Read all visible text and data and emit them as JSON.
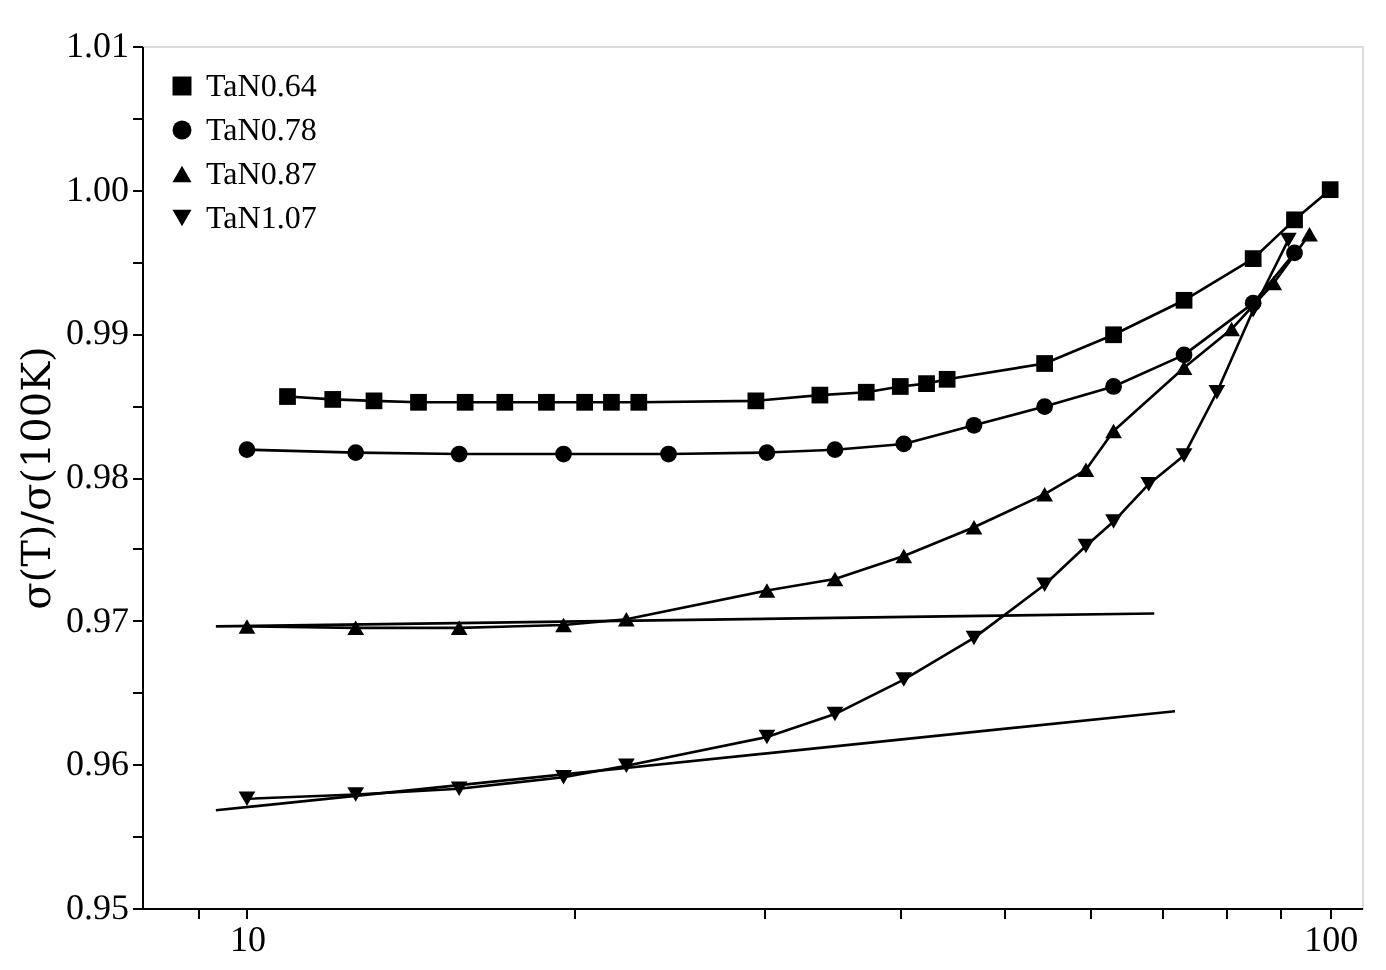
{
  "chart_data": {
    "type": "line",
    "ylabel": "σ(T)/σ(100K)",
    "log": "x",
    "grid": false,
    "legend": "top left",
    "line_style": "solid",
    "xlim": [
      8,
      107
    ],
    "xticks": [
      {
        "value": 9,
        "label": null
      },
      10,
      {
        "value": 20,
        "label": null
      },
      {
        "value": 30,
        "label": null
      },
      {
        "value": 40,
        "label": null
      },
      {
        "value": 50,
        "label": null
      },
      {
        "value": 60,
        "label": null
      },
      {
        "value": 70,
        "label": null
      },
      {
        "value": 80,
        "label": null
      },
      {
        "value": 90,
        "label": null
      },
      100
    ],
    "ylim": [
      0.95,
      1.01
    ],
    "yticks": [
      0.95,
      {
        "value": 0.955,
        "label": null
      },
      0.96,
      {
        "value": 0.965,
        "label": null
      },
      0.97,
      {
        "value": 0.975,
        "label": null
      },
      0.98,
      {
        "value": 0.985,
        "label": null
      },
      0.99,
      {
        "value": 0.995,
        "label": null
      },
      {
        "value": 1.0,
        "label": "1.00"
      },
      {
        "value": 1.005,
        "label": null
      },
      1.01
    ],
    "series": [
      {
        "name": "TaN0.64",
        "color": "#000000",
        "marker": "square",
        "x": [
          10.9,
          12.0,
          13.1,
          14.4,
          15.9,
          17.3,
          18.9,
          20.5,
          21.7,
          23.0,
          29.5,
          33.8,
          37.3,
          40.1,
          42.4,
          44.3,
          54.5,
          63.1,
          73.3,
          84.9,
          92.7,
          100
        ],
        "values": [
          0.9856,
          0.9854,
          0.9853,
          0.9852,
          0.9852,
          0.9852,
          0.9852,
          0.9852,
          0.9852,
          0.9852,
          0.9853,
          0.9857,
          0.9859,
          0.9863,
          0.9865,
          0.9868,
          0.9879,
          0.9899,
          0.9923,
          0.9952,
          0.9979,
          1.0
        ]
      },
      {
        "name": "TaN0.78",
        "color": "#000000",
        "marker": "circle",
        "x": [
          10,
          12.6,
          15.7,
          19.6,
          24.5,
          30.2,
          34.9,
          40.4,
          46.9,
          54.5,
          63.1,
          73.3,
          84.9,
          92.7
        ],
        "values": [
          0.9819,
          0.9817,
          0.9816,
          0.9816,
          0.9816,
          0.9817,
          0.9819,
          0.9823,
          0.9836,
          0.9849,
          0.9863,
          0.9885,
          0.9921,
          0.9956
        ]
      },
      {
        "name": "TaN0.87",
        "color": "#000000",
        "marker": "triangle",
        "x": [
          10,
          12.6,
          15.7,
          19.6,
          22.4,
          30.2,
          34.9,
          40.4,
          46.9,
          54.5,
          59.5,
          63.1,
          73.3,
          81.1,
          88.7,
          95.7
        ],
        "values": [
          0.9696,
          0.9695,
          0.9695,
          0.9697,
          0.9701,
          0.9721,
          0.9729,
          0.9745,
          0.9765,
          0.9788,
          0.9805,
          0.9832,
          0.9876,
          0.9903,
          0.9935,
          0.9969
        ]
      },
      {
        "name": "TaN1.07",
        "color": "#000000",
        "marker": "triangle-down",
        "x": [
          10,
          12.6,
          15.7,
          19.6,
          22.4,
          30.2,
          34.9,
          40.4,
          46.9,
          54.5,
          59.5,
          63.1,
          68.0,
          73.3,
          78.6,
          84.9,
          91.5
        ],
        "values": [
          0.9576,
          0.9579,
          0.9583,
          0.9591,
          0.9599,
          0.9619,
          0.9635,
          0.9659,
          0.9688,
          0.9725,
          0.9752,
          0.9769,
          0.9795,
          0.9815,
          0.9859,
          0.9916,
          0.9965
        ]
      },
      {
        "type": "line",
        "color": "#000000",
        "marker": "none",
        "x": [
          9.36,
          68.8
        ],
        "values": [
          0.9696,
          0.9705
        ]
      },
      {
        "type": "line",
        "color": "#000000",
        "marker": "none",
        "x": [
          9.36,
          71.9
        ],
        "values": [
          0.9568,
          0.9637
        ]
      }
    ]
  }
}
